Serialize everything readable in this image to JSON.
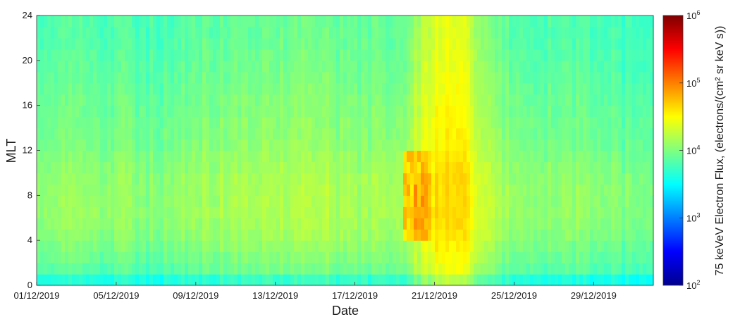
{
  "chart_data": {
    "type": "heatmap",
    "title": "",
    "xlabel": "Date",
    "ylabel": "MLT",
    "colorbar_label": "75 keVeV Electron Flux, (electrons/(cm² sr keV s))",
    "x_tick_labels": [
      "01/12/2019",
      "05/12/2019",
      "09/12/2019",
      "13/12/2019",
      "17/12/2019",
      "21/12/2019",
      "25/12/2019",
      "29/12/2019"
    ],
    "x_range": [
      "01/12/2019",
      "01/01/2020"
    ],
    "y_ticks": [
      0,
      4,
      8,
      12,
      16,
      20,
      24
    ],
    "ylim": [
      0,
      24
    ],
    "color_scale": "log",
    "colormap": "jet",
    "clim": [
      100,
      1000000
    ],
    "colorbar_ticks": [
      {
        "base": "10",
        "exp": "2",
        "value": 100
      },
      {
        "base": "10",
        "exp": "3",
        "value": 1000
      },
      {
        "base": "10",
        "exp": "4",
        "value": 10000
      },
      {
        "base": "10",
        "exp": "5",
        "value": 100000
      },
      {
        "base": "10",
        "exp": "6",
        "value": 1000000
      }
    ],
    "grid": false,
    "day_flux_log10": [
      3.95,
      3.98,
      3.96,
      3.97,
      4.0,
      3.95,
      3.93,
      4.02,
      4.05,
      4.03,
      4.08,
      4.1,
      4.06,
      4.12,
      4.09,
      4.05,
      4.03,
      4.07,
      4.06,
      4.42,
      4.6,
      4.5,
      4.2,
      4.05,
      3.97,
      3.95,
      4.0,
      3.98,
      3.96,
      3.9,
      3.92,
      3.88
    ],
    "mlt_profile_log10": [
      -0.35,
      -0.12,
      -0.05,
      0.0,
      0.05,
      0.08,
      0.1,
      0.1,
      0.1,
      0.09,
      0.06,
      0.03,
      0.0,
      -0.02,
      -0.03,
      -0.05,
      -0.06,
      -0.08,
      -0.1,
      -0.12,
      -0.13,
      -0.15,
      -0.16,
      -0.16
    ],
    "enhancement_event": {
      "dates": [
        "19/12/2019",
        "20/12/2019"
      ],
      "mlt_range": [
        4,
        12
      ],
      "peak_flux_log10": 4.95
    }
  }
}
